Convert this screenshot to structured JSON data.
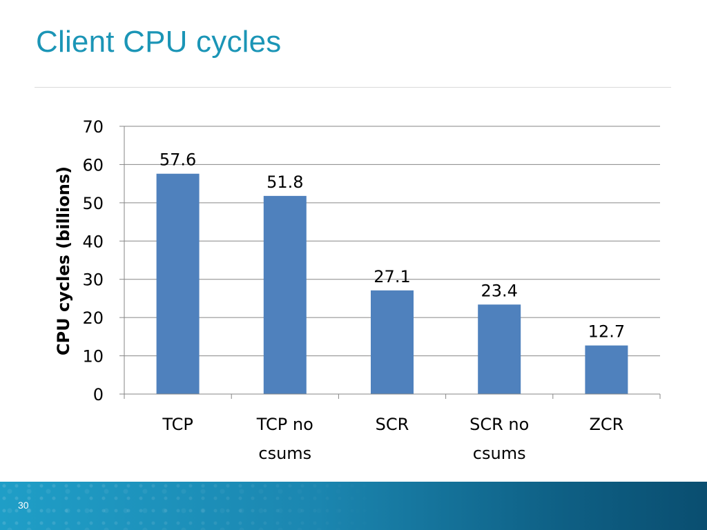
{
  "slide": {
    "title": "Client CPU cycles",
    "page_number": "30"
  },
  "colors": {
    "title": "#1b95b6",
    "bar": "#4f81bd",
    "footer": "#1b86b0"
  },
  "chart_data": {
    "type": "bar",
    "categories": [
      [
        "TCP"
      ],
      [
        "TCP no",
        "csums"
      ],
      [
        "SCR"
      ],
      [
        "SCR no",
        "csums"
      ],
      [
        "ZCR"
      ]
    ],
    "values": [
      57.6,
      51.8,
      27.1,
      23.4,
      12.7
    ],
    "data_labels": [
      "57.6",
      "51.8",
      "27.1",
      "23.4",
      "12.7"
    ],
    "ylabel": "CPU cycles (billions)",
    "xlabel": "",
    "ylim": [
      0,
      70
    ],
    "yticks": [
      0,
      10,
      20,
      30,
      40,
      50,
      60,
      70
    ],
    "grid": true,
    "legend": "none"
  }
}
